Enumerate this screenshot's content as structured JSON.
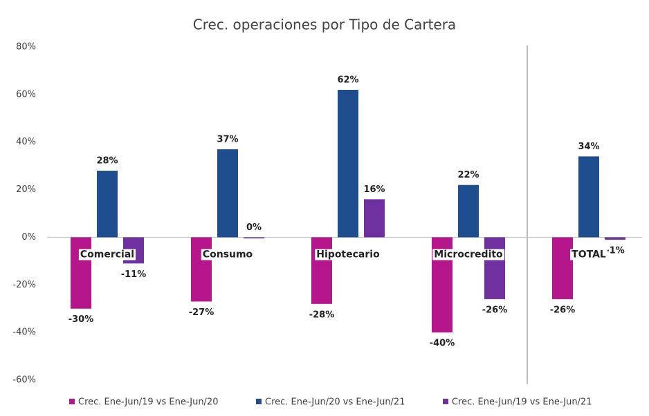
{
  "chart_data": {
    "type": "bar",
    "title": "Crec. operaciones por Tipo de Cartera",
    "categories": [
      "Comercial",
      "Consumo",
      "Hipotecario",
      "Microcredito",
      "TOTAL"
    ],
    "series": [
      {
        "name": "Crec. Ene-Jun/19 vs Ene-Jun/20",
        "color": "#b5168c",
        "values": [
          -30,
          -27,
          -28,
          -40,
          -26
        ],
        "value_labels": [
          "-30%",
          "-27%",
          "-28%",
          "-40%",
          "-26%"
        ]
      },
      {
        "name": "Crec. Ene-Jun/20 vs Ene-Jun/21",
        "color": "#1f4e8f",
        "values": [
          28,
          37,
          62,
          22,
          34
        ],
        "value_labels": [
          "28%",
          "37%",
          "62%",
          "22%",
          "34%"
        ]
      },
      {
        "name": "Crec. Ene-Jun/19 vs Ene-Jun/21",
        "color": "#7030a0",
        "values": [
          -11,
          0,
          16,
          -26,
          -1
        ],
        "value_labels": [
          "-11%",
          "0%",
          "16%",
          "-26%",
          "-1%"
        ]
      }
    ],
    "ylim": [
      -60,
      80
    ],
    "yticks": [
      {
        "value": -60,
        "label": "-60%"
      },
      {
        "value": -40,
        "label": "-40%"
      },
      {
        "value": -20,
        "label": "-20%"
      },
      {
        "value": 0,
        "label": "0%"
      },
      {
        "value": 20,
        "label": "20%"
      },
      {
        "value": 40,
        "label": "40%"
      },
      {
        "value": 60,
        "label": "60%"
      },
      {
        "value": 80,
        "label": "80%"
      }
    ],
    "grid": false,
    "legend": "bottom"
  }
}
